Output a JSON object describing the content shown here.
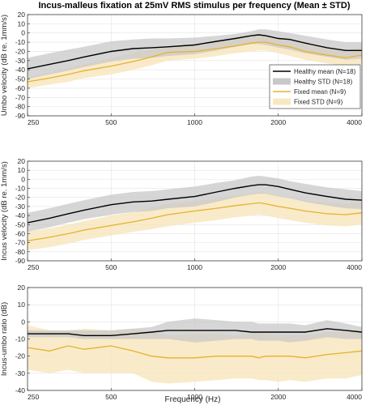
{
  "chart_data": {
    "title": "Incus-malleus fixation at 25mV RMS stimulus per frequency (Mean ± STD)",
    "xlabel": "Frequency (Hz)",
    "x_scale": "log",
    "xlim": [
      250,
      4000
    ],
    "x_ticks": [
      250,
      500,
      1000,
      2000,
      4000
    ],
    "grid": true,
    "legend_placement": "right, inside top panel",
    "colors": {
      "healthy": "#000000",
      "healthy_band": "#c8c8c8",
      "fixed": "#e6b12e",
      "fixed_band": "#f8e8c0"
    },
    "panels": [
      {
        "type": "line",
        "ylabel": "Umbo velocity  (dB re. 1mm/s)",
        "ylim": [
          -90,
          20
        ],
        "y_ticks": [
          20,
          10,
          0,
          -10,
          -20,
          -30,
          -40,
          -50,
          -60,
          -70,
          -80,
          -90
        ],
        "x": [
          250,
          300,
          350,
          400,
          500,
          600,
          700,
          800,
          1000,
          1200,
          1400,
          1600,
          1700,
          1800,
          2000,
          2200,
          2500,
          3000,
          3500,
          4000
        ],
        "series": [
          {
            "name": "Healthy mean (N=18)",
            "role": "healthy_mean",
            "values": [
              -39,
              -34,
              -30,
              -26,
              -20,
              -17,
              -16,
              -15,
              -13,
              -9,
              -6,
              -3,
              -2,
              -3,
              -6,
              -7,
              -11,
              -16,
              -19,
              -19
            ]
          },
          {
            "name": "Healthy STD (N=18)",
            "role": "healthy_band",
            "upper": [
              -27,
              -22,
              -18,
              -15,
              -9,
              -7,
              -6,
              -6,
              -5,
              -3,
              -1,
              2,
              4,
              4,
              2,
              0,
              -3,
              -7,
              -10,
              -10
            ],
            "lower": [
              -50,
              -45,
              -41,
              -37,
              -31,
              -28,
              -27,
              -25,
              -23,
              -19,
              -15,
              -12,
              -12,
              -13,
              -16,
              -18,
              -22,
              -26,
              -29,
              -28
            ]
          },
          {
            "name": "Fixed mean (N=9)",
            "role": "fixed_mean",
            "values": [
              -53,
              -49,
              -45,
              -41,
              -36,
              -31,
              -26,
              -21,
              -20,
              -17,
              -14,
              -11,
              -10,
              -10,
              -13,
              -15,
              -20,
              -24,
              -27,
              -24
            ]
          },
          {
            "name": "Fixed STD (N=9)",
            "role": "fixed_band",
            "upper": [
              -48,
              -43,
              -38,
              -34,
              -27,
              -22,
              -18,
              -14,
              -12,
              -9,
              -6,
              -3,
              -2,
              -2,
              -5,
              -7,
              -11,
              -16,
              -19,
              -15
            ],
            "lower": [
              -60,
              -56,
              -53,
              -49,
              -45,
              -40,
              -35,
              -30,
              -28,
              -25,
              -22,
              -20,
              -19,
              -19,
              -22,
              -25,
              -29,
              -33,
              -36,
              -34
            ]
          }
        ]
      },
      {
        "type": "line",
        "ylabel": "Incus velocity  (dB re. 1mm/s)",
        "ylim": [
          -90,
          20
        ],
        "y_ticks": [
          20,
          10,
          0,
          -10,
          -20,
          -30,
          -40,
          -50,
          -60,
          -70,
          -80,
          -90
        ],
        "x": [
          250,
          300,
          350,
          400,
          500,
          600,
          700,
          800,
          1000,
          1200,
          1400,
          1600,
          1700,
          1800,
          2000,
          2200,
          2500,
          3000,
          3500,
          4000
        ],
        "series": [
          {
            "name": "Healthy mean (N=18)",
            "role": "healthy_mean",
            "values": [
              -48,
              -43,
              -38,
              -34,
              -28,
              -25,
              -24,
              -22,
              -19,
              -14,
              -10,
              -7,
              -6,
              -6,
              -8,
              -11,
              -15,
              -19,
              -22,
              -23
            ]
          },
          {
            "name": "Healthy STD (N=18)",
            "role": "healthy_band",
            "upper": [
              -37,
              -32,
              -27,
              -23,
              -17,
              -14,
              -13,
              -11,
              -8,
              -4,
              -1,
              3,
              4,
              3,
              1,
              -2,
              -5,
              -9,
              -11,
              -13
            ],
            "lower": [
              -58,
              -53,
              -48,
              -44,
              -39,
              -36,
              -35,
              -32,
              -30,
              -25,
              -20,
              -17,
              -16,
              -16,
              -19,
              -21,
              -25,
              -29,
              -32,
              -33
            ]
          },
          {
            "name": "Fixed mean (N=9)",
            "role": "fixed_mean",
            "values": [
              -68,
              -64,
              -60,
              -56,
              -51,
              -47,
              -43,
              -39,
              -35,
              -32,
              -29,
              -27,
              -26,
              -27,
              -30,
              -32,
              -35,
              -38,
              -39,
              -37
            ]
          },
          {
            "name": "Fixed STD (N=9)",
            "role": "fixed_band",
            "upper": [
              -58,
              -54,
              -50,
              -46,
              -40,
              -36,
              -31,
              -27,
              -24,
              -21,
              -18,
              -16,
              -14,
              -15,
              -18,
              -20,
              -23,
              -26,
              -27,
              -25
            ],
            "lower": [
              -78,
              -75,
              -71,
              -67,
              -62,
              -58,
              -55,
              -52,
              -48,
              -45,
              -42,
              -40,
              -39,
              -40,
              -43,
              -45,
              -48,
              -51,
              -52,
              -50
            ]
          }
        ]
      },
      {
        "type": "line",
        "ylabel": "Incus-umbo ratio (dB)",
        "ylim": [
          -40,
          20
        ],
        "y_ticks": [
          20,
          10,
          0,
          -10,
          -20,
          -30,
          -40
        ],
        "x": [
          250,
          300,
          350,
          400,
          500,
          600,
          700,
          800,
          1000,
          1200,
          1400,
          1600,
          1700,
          1800,
          2000,
          2200,
          2500,
          3000,
          3500,
          4000
        ],
        "series": [
          {
            "name": "Healthy mean (N=18)",
            "role": "healthy_mean",
            "values": [
              -7,
              -7,
              -7,
              -8,
              -8,
              -7,
              -6,
              -5,
              -5,
              -5,
              -5,
              -6,
              -6,
              -6,
              -6,
              -6,
              -6,
              -4,
              -5,
              -6
            ]
          },
          {
            "name": "Healthy STD (N=18)",
            "role": "healthy_band",
            "upper": [
              -5,
              -5,
              -5,
              -5,
              -5,
              -4,
              -3,
              0,
              2,
              1,
              0,
              0,
              -1,
              -1,
              -1,
              -1,
              -2,
              1,
              -1,
              -3
            ],
            "lower": [
              -9,
              -9,
              -9,
              -10,
              -10,
              -10,
              -10,
              -10,
              -12,
              -11,
              -10,
              -10,
              -11,
              -11,
              -11,
              -12,
              -11,
              -9,
              -10,
              -10
            ]
          },
          {
            "name": "Fixed mean (N=9)",
            "role": "fixed_mean",
            "values": [
              -15,
              -17,
              -14,
              -16,
              -14,
              -17,
              -20,
              -21,
              -21,
              -20,
              -20,
              -20,
              -21,
              -20,
              -20,
              -20,
              -21,
              -19,
              -18,
              -17
            ]
          },
          {
            "name": "Fixed STD (N=9)",
            "role": "fixed_band",
            "upper": [
              -2,
              -5,
              -5,
              -4,
              -5,
              -4,
              -6,
              -8,
              -7,
              -7,
              -8,
              -7,
              -6,
              -7,
              -8,
              -8,
              -8,
              -6,
              -6,
              -6
            ],
            "lower": [
              -28,
              -30,
              -28,
              -30,
              -30,
              -30,
              -35,
              -36,
              -35,
              -34,
              -33,
              -33,
              -34,
              -34,
              -35,
              -34,
              -35,
              -33,
              -33,
              -31
            ]
          }
        ]
      }
    ]
  }
}
